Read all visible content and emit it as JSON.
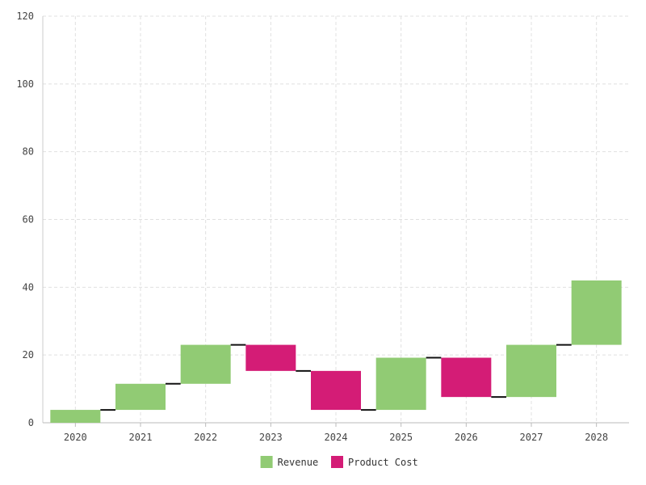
{
  "chart_data": {
    "type": "bar",
    "subtype": "waterfall",
    "title": "",
    "xlabel": "",
    "ylabel": "",
    "categories": [
      "2020",
      "2021",
      "2022",
      "2023",
      "2024",
      "2025",
      "2026",
      "2027",
      "2028"
    ],
    "steps": [
      {
        "category": "2020",
        "start": 0,
        "end": 3.8,
        "series": "Revenue"
      },
      {
        "category": "2021",
        "start": 3.8,
        "end": 11.5,
        "series": "Revenue"
      },
      {
        "category": "2022",
        "start": 11.5,
        "end": 23.0,
        "series": "Revenue"
      },
      {
        "category": "2023",
        "start": 23.0,
        "end": 15.3,
        "series": "Product Cost"
      },
      {
        "category": "2024",
        "start": 15.3,
        "end": 3.8,
        "series": "Product Cost"
      },
      {
        "category": "2025",
        "start": 3.8,
        "end": 19.2,
        "series": "Revenue"
      },
      {
        "category": "2026",
        "start": 19.2,
        "end": 7.6,
        "series": "Product Cost"
      },
      {
        "category": "2027",
        "start": 7.6,
        "end": 23.0,
        "series": "Revenue"
      },
      {
        "category": "2028",
        "start": 23.0,
        "end": 42.0,
        "series": "Revenue"
      }
    ],
    "series": [
      {
        "name": "Revenue",
        "color": "#91cb74"
      },
      {
        "name": "Product Cost",
        "color": "#d41c76"
      }
    ],
    "ylim": [
      0,
      120
    ],
    "yticks": [
      0,
      20,
      40,
      60,
      80,
      100,
      120
    ],
    "grid": true,
    "legend_position": "bottom-center"
  }
}
